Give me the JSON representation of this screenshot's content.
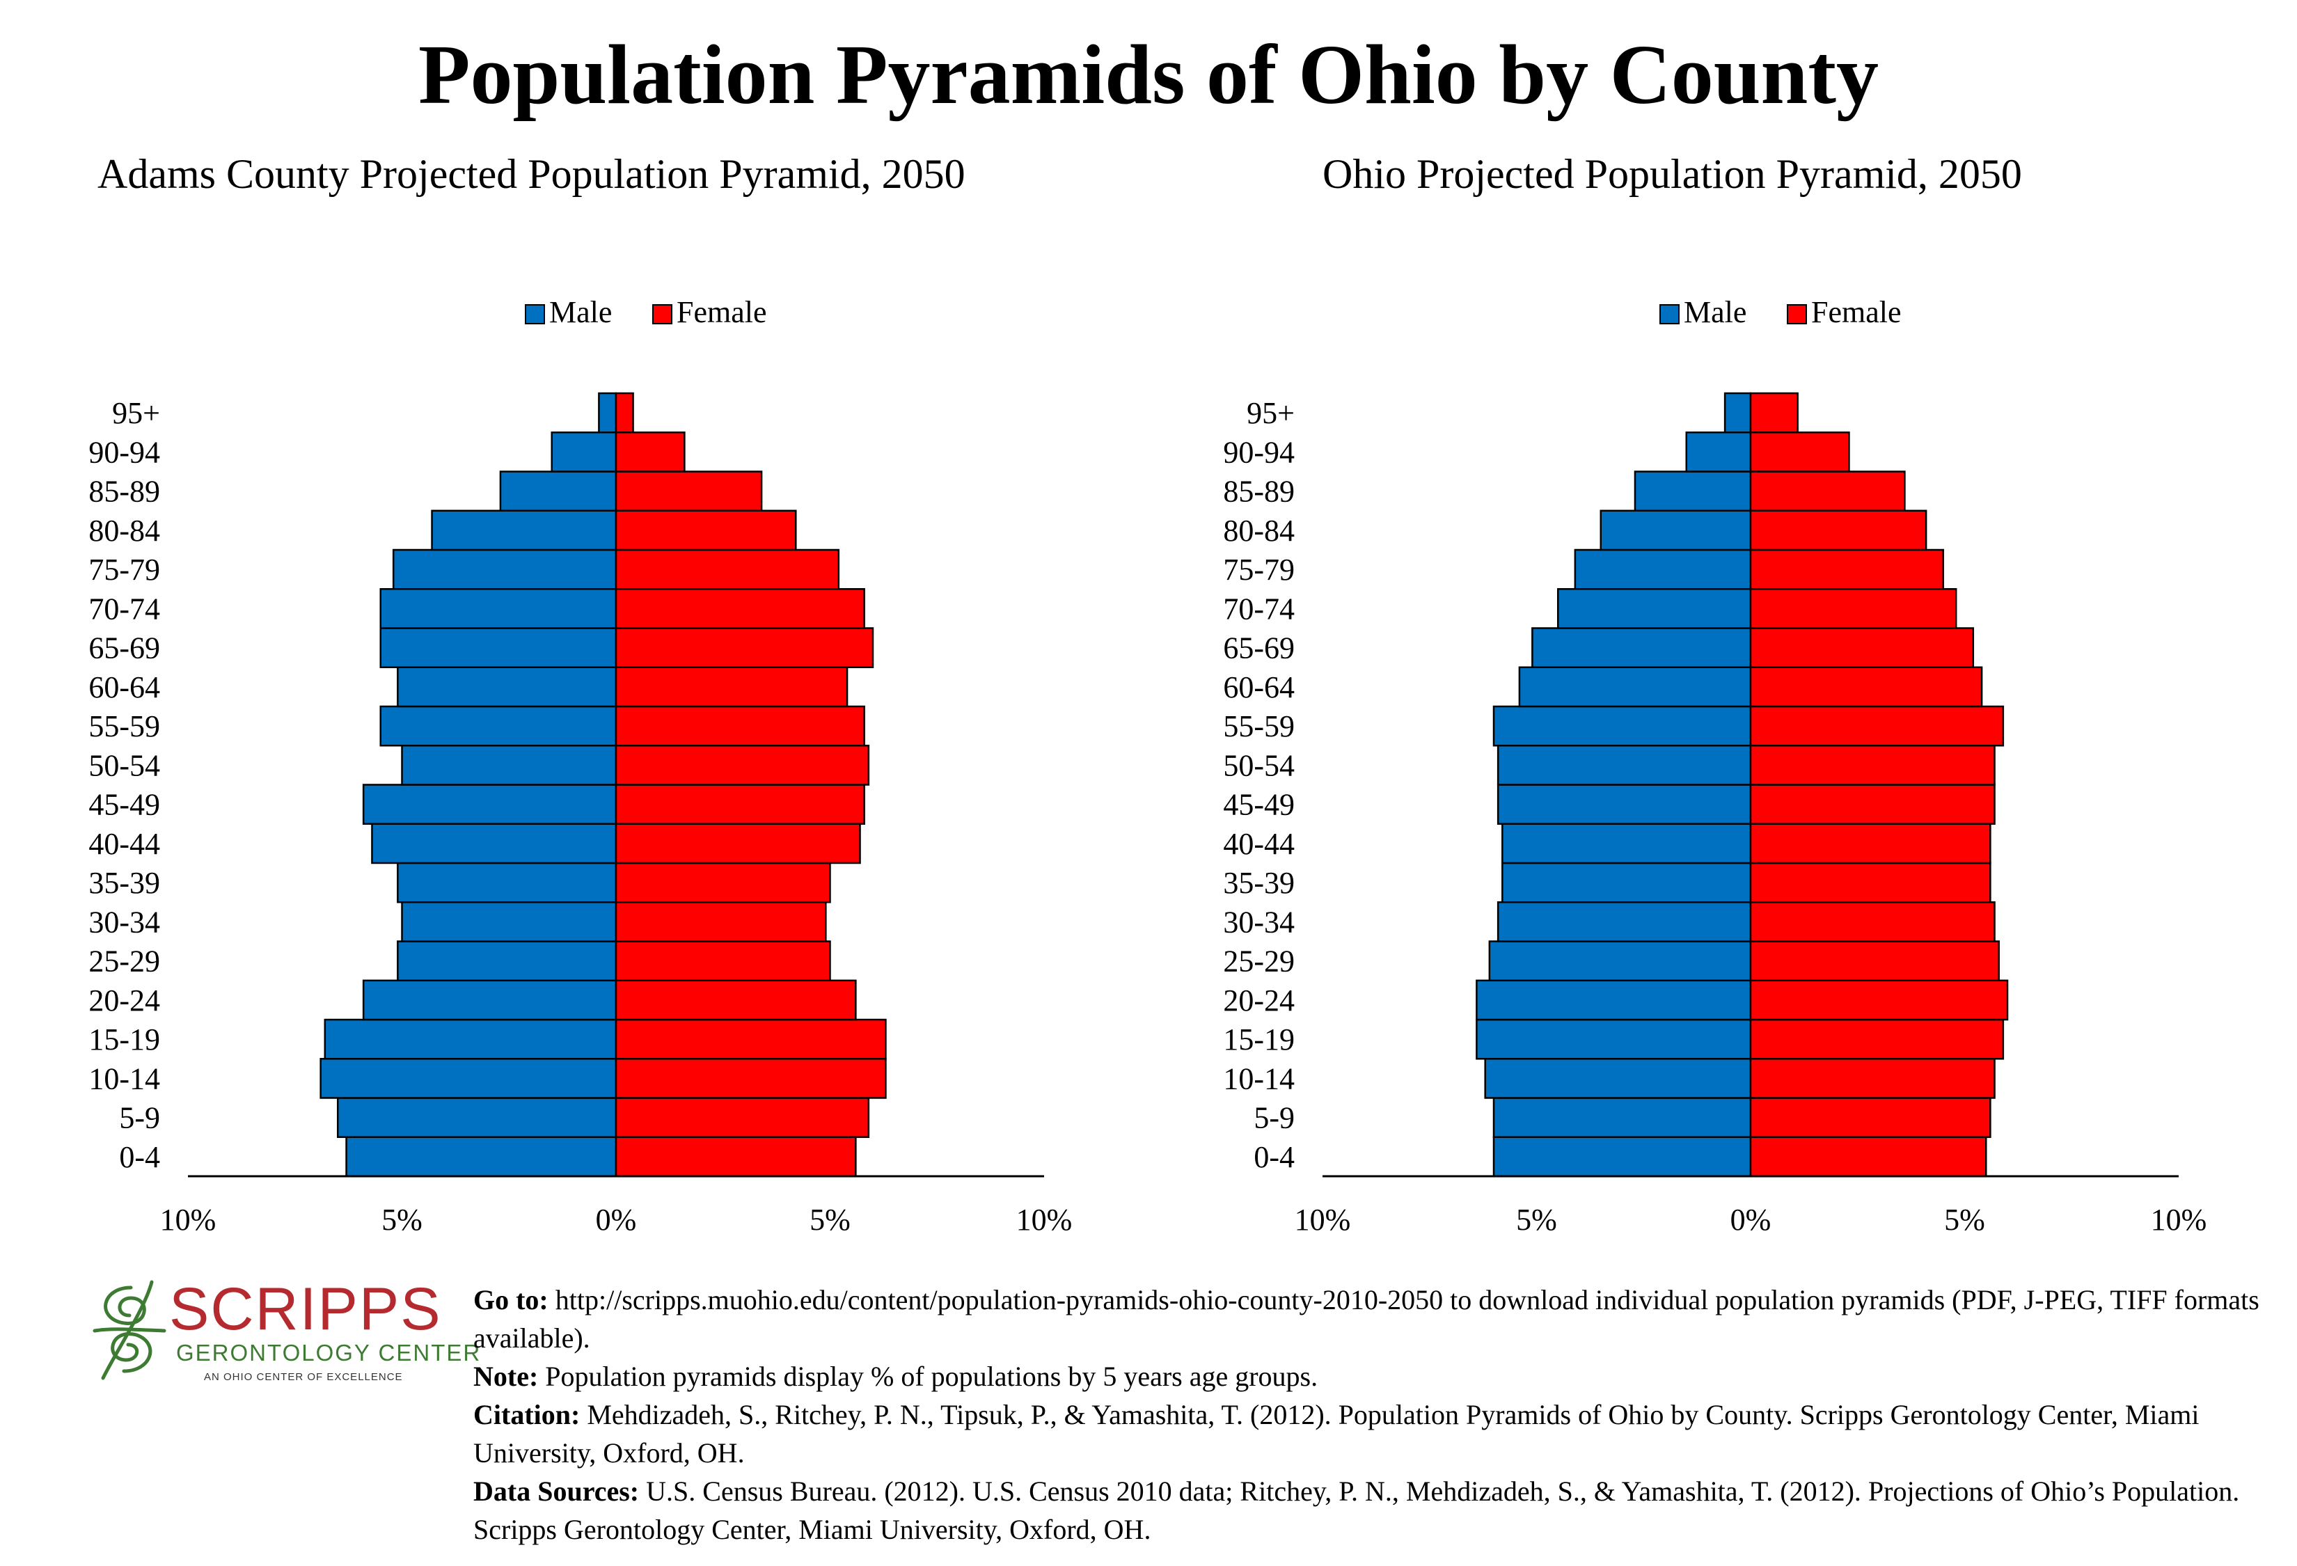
{
  "page": {
    "title": "Population Pyramids of Ohio by County"
  },
  "chart_data": [
    {
      "type": "bar",
      "orientation": "horizontal-population-pyramid",
      "title": "Adams County Projected Population Pyramid, 2050",
      "categories": [
        "0-4",
        "5-9",
        "10-14",
        "15-19",
        "20-24",
        "25-29",
        "30-34",
        "35-39",
        "40-44",
        "45-49",
        "50-54",
        "55-59",
        "60-64",
        "65-69",
        "70-74",
        "75-79",
        "80-84",
        "85-89",
        "90-94",
        "95+"
      ],
      "series": [
        {
          "name": "Male",
          "color": "#0070c0",
          "values": [
            6.3,
            6.5,
            6.9,
            6.8,
            5.9,
            5.1,
            5.0,
            5.1,
            5.7,
            5.9,
            5.0,
            5.5,
            5.1,
            5.5,
            5.5,
            5.2,
            4.3,
            2.7,
            1.5,
            0.4
          ]
        },
        {
          "name": "Female",
          "color": "#ff0000",
          "values": [
            5.6,
            5.9,
            6.3,
            6.3,
            5.6,
            5.0,
            4.9,
            5.0,
            5.7,
            5.8,
            5.9,
            5.8,
            5.4,
            6.0,
            5.8,
            5.2,
            4.2,
            3.4,
            1.6,
            0.4
          ]
        }
      ],
      "xlim": [
        -10,
        10
      ],
      "tick_labels": [
        "10%",
        "5%",
        "0%",
        "5%",
        "10%"
      ],
      "legend": {
        "position": "top-center",
        "labels": [
          "Male",
          "Female"
        ]
      }
    },
    {
      "type": "bar",
      "orientation": "horizontal-population-pyramid",
      "title": "Ohio Projected Population Pyramid, 2050",
      "categories": [
        "0-4",
        "5-9",
        "10-14",
        "15-19",
        "20-24",
        "25-29",
        "30-34",
        "35-39",
        "40-44",
        "45-49",
        "50-54",
        "55-59",
        "60-64",
        "65-69",
        "70-74",
        "75-79",
        "80-84",
        "85-89",
        "90-94",
        "95+"
      ],
      "series": [
        {
          "name": "Male",
          "color": "#0070c0",
          "values": [
            6.0,
            6.0,
            6.2,
            6.4,
            6.4,
            6.1,
            5.9,
            5.8,
            5.8,
            5.9,
            5.9,
            6.0,
            5.4,
            5.1,
            4.5,
            4.1,
            3.5,
            2.7,
            1.5,
            0.6
          ]
        },
        {
          "name": "Female",
          "color": "#ff0000",
          "values": [
            5.5,
            5.6,
            5.7,
            5.9,
            6.0,
            5.8,
            5.7,
            5.6,
            5.6,
            5.7,
            5.7,
            5.9,
            5.4,
            5.2,
            4.8,
            4.5,
            4.1,
            3.6,
            2.3,
            1.1
          ]
        }
      ],
      "xlim": [
        -10,
        10
      ],
      "tick_labels": [
        "10%",
        "5%",
        "0%",
        "5%",
        "10%"
      ],
      "legend": {
        "position": "top-center",
        "labels": [
          "Male",
          "Female"
        ]
      }
    }
  ],
  "logo": {
    "name": "SCRIPPS",
    "line2": "GERONTOLOGY CENTER",
    "line3": "AN OHIO CENTER OF EXCELLENCE",
    "color_primary": "#b52a2e",
    "color_secondary": "#3e7b32"
  },
  "notes": {
    "goto_label": "Go to:",
    "goto_text": "http://scripps.muohio.edu/content/population-pyramids-ohio-county-2010-2050 to download individual population pyramids (PDF, J-PEG, TIFF formats available).",
    "note_label": "Note:",
    "note_text": "Population pyramids display % of populations by 5 years age groups.",
    "citation_label": "Citation:",
    "citation_text": "Mehdizadeh, S., Ritchey, P. N., Tipsuk, P., & Yamashita, T. (2012). Population Pyramids of Ohio by County. Scripps Gerontology Center, Miami University, Oxford, OH.",
    "sources_label": "Data Sources:",
    "sources_text": "U.S. Census Bureau. (2012). U.S. Census 2010 data; Ritchey, P. N., Mehdizadeh, S., & Yamashita, T. (2012). Projections of Ohio’s Population. Scripps Gerontology Center, Miami University, Oxford, OH."
  }
}
